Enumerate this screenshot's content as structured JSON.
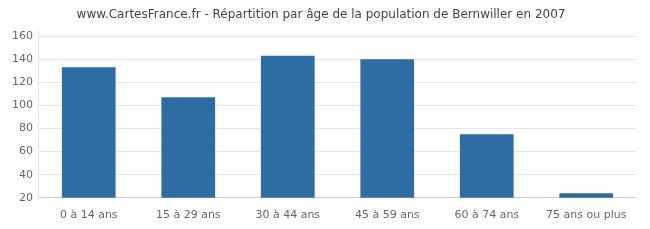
{
  "chart_data": {
    "type": "bar",
    "title": "www.CartesFrance.fr - Répartition par âge de la population de Bernwiller en 2007",
    "categories": [
      "0 à 14 ans",
      "15 à 29 ans",
      "30 à 44 ans",
      "45 à 59 ans",
      "60 à 74 ans",
      "75 ans ou plus"
    ],
    "values": [
      133,
      107,
      143,
      140,
      75,
      24
    ],
    "color": "#2e6da4",
    "ylim": [
      20,
      165
    ],
    "yticks": [
      20,
      40,
      60,
      80,
      100,
      120,
      140,
      160
    ],
    "grid": true
  }
}
